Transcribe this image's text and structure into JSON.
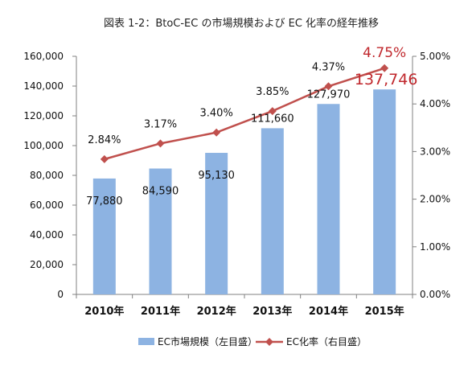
{
  "chart_data": {
    "type": "bar",
    "title": "図表 1-2：BtoC-EC の市場規模および EC 化率の経年推移",
    "categories": [
      "2010年",
      "2011年",
      "2012年",
      "2013年",
      "2014年",
      "2015年"
    ],
    "series": [
      {
        "name": "EC市場規模（左目盛）",
        "type": "bar",
        "axis": "left",
        "values": [
          77880,
          84590,
          95130,
          111660,
          127970,
          137746
        ],
        "labels": [
          "77,880",
          "84,590",
          "95,130",
          "111,660",
          "127,970",
          "137,746"
        ],
        "color": "#8db3e2"
      },
      {
        "name": "EC化率（右目盛）",
        "type": "line",
        "axis": "right",
        "values": [
          2.84,
          3.17,
          3.4,
          3.85,
          4.37,
          4.75
        ],
        "labels": [
          "2.84%",
          "3.17%",
          "3.40%",
          "3.85%",
          "4.37%",
          "4.75%"
        ],
        "color": "#c0504d"
      }
    ],
    "y_left": {
      "min": 0,
      "max": 160000,
      "ticks": [
        "0",
        "20,000",
        "40,000",
        "60,000",
        "80,000",
        "100,000",
        "120,000",
        "140,000",
        "160,000"
      ]
    },
    "y_right": {
      "min": 0,
      "max": 5,
      "ticks": [
        "0.00%",
        "1.00%",
        "2.00%",
        "3.00%",
        "4.00%",
        "5.00%"
      ]
    },
    "highlight_color": "#c0282d",
    "highlight_last": true,
    "grid": false,
    "legend_position": "bottom"
  }
}
